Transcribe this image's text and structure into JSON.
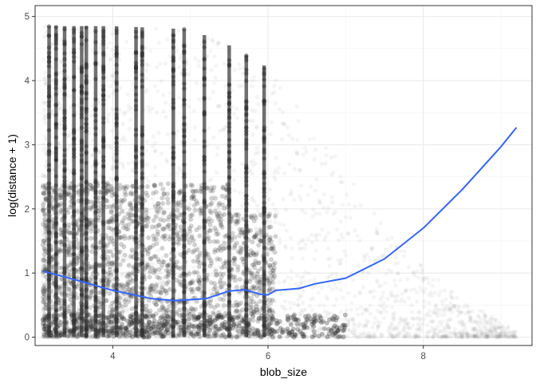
{
  "chart_data": {
    "type": "scatter",
    "title": "",
    "xlabel": "blob_size",
    "ylabel": "log(distance + 1)",
    "xlim": [
      3.0,
      9.4
    ],
    "ylim": [
      -0.13,
      5.17
    ],
    "x_ticks": [
      4,
      6,
      8
    ],
    "y_ticks": [
      0,
      1,
      2,
      3,
      4,
      5
    ],
    "x_tick_labels": [
      "4",
      "6",
      "8"
    ],
    "y_tick_labels": [
      "0",
      "1",
      "2",
      "3",
      "4",
      "5"
    ],
    "grid": true,
    "legend": "none",
    "series": [
      {
        "kind": "points",
        "color": "#333333",
        "opacity": "low (alpha ~0.03)",
        "description_range": {
          "x": [
            3.1,
            9.2
          ],
          "y": [
            0,
            4.85
          ]
        },
        "dense_columns_x": [
          3.18,
          3.27,
          3.38,
          3.5,
          3.6,
          3.66,
          3.78,
          3.88,
          4.05,
          4.3,
          4.38,
          4.78,
          4.92,
          5.18,
          5.5,
          5.72,
          5.95
        ],
        "y_max_by_x": [
          {
            "x": 3.1,
            "y": 4.85
          },
          {
            "x": 4.0,
            "y": 4.85
          },
          {
            "x": 5.0,
            "y": 4.8
          },
          {
            "x": 5.5,
            "y": 4.55
          },
          {
            "x": 6.0,
            "y": 4.2
          },
          {
            "x": 6.5,
            "y": 3.4
          },
          {
            "x": 7.0,
            "y": 2.6
          },
          {
            "x": 7.5,
            "y": 1.7
          },
          {
            "x": 8.0,
            "y": 1.1
          },
          {
            "x": 8.5,
            "y": 0.6
          },
          {
            "x": 9.2,
            "y": 0.1
          }
        ]
      },
      {
        "kind": "smooth",
        "color": "#3366FF",
        "x": [
          3.1,
          3.5,
          4.0,
          4.5,
          4.8,
          5.2,
          5.5,
          5.7,
          5.9,
          6.0,
          6.1,
          6.2,
          6.4,
          6.6,
          7.0,
          7.5,
          8.0,
          8.5,
          9.0,
          9.2
        ],
        "y": [
          1.03,
          0.9,
          0.73,
          0.6,
          0.57,
          0.6,
          0.72,
          0.74,
          0.67,
          0.66,
          0.73,
          0.74,
          0.76,
          0.83,
          0.92,
          1.22,
          1.7,
          2.3,
          2.97,
          3.27
        ]
      }
    ]
  }
}
